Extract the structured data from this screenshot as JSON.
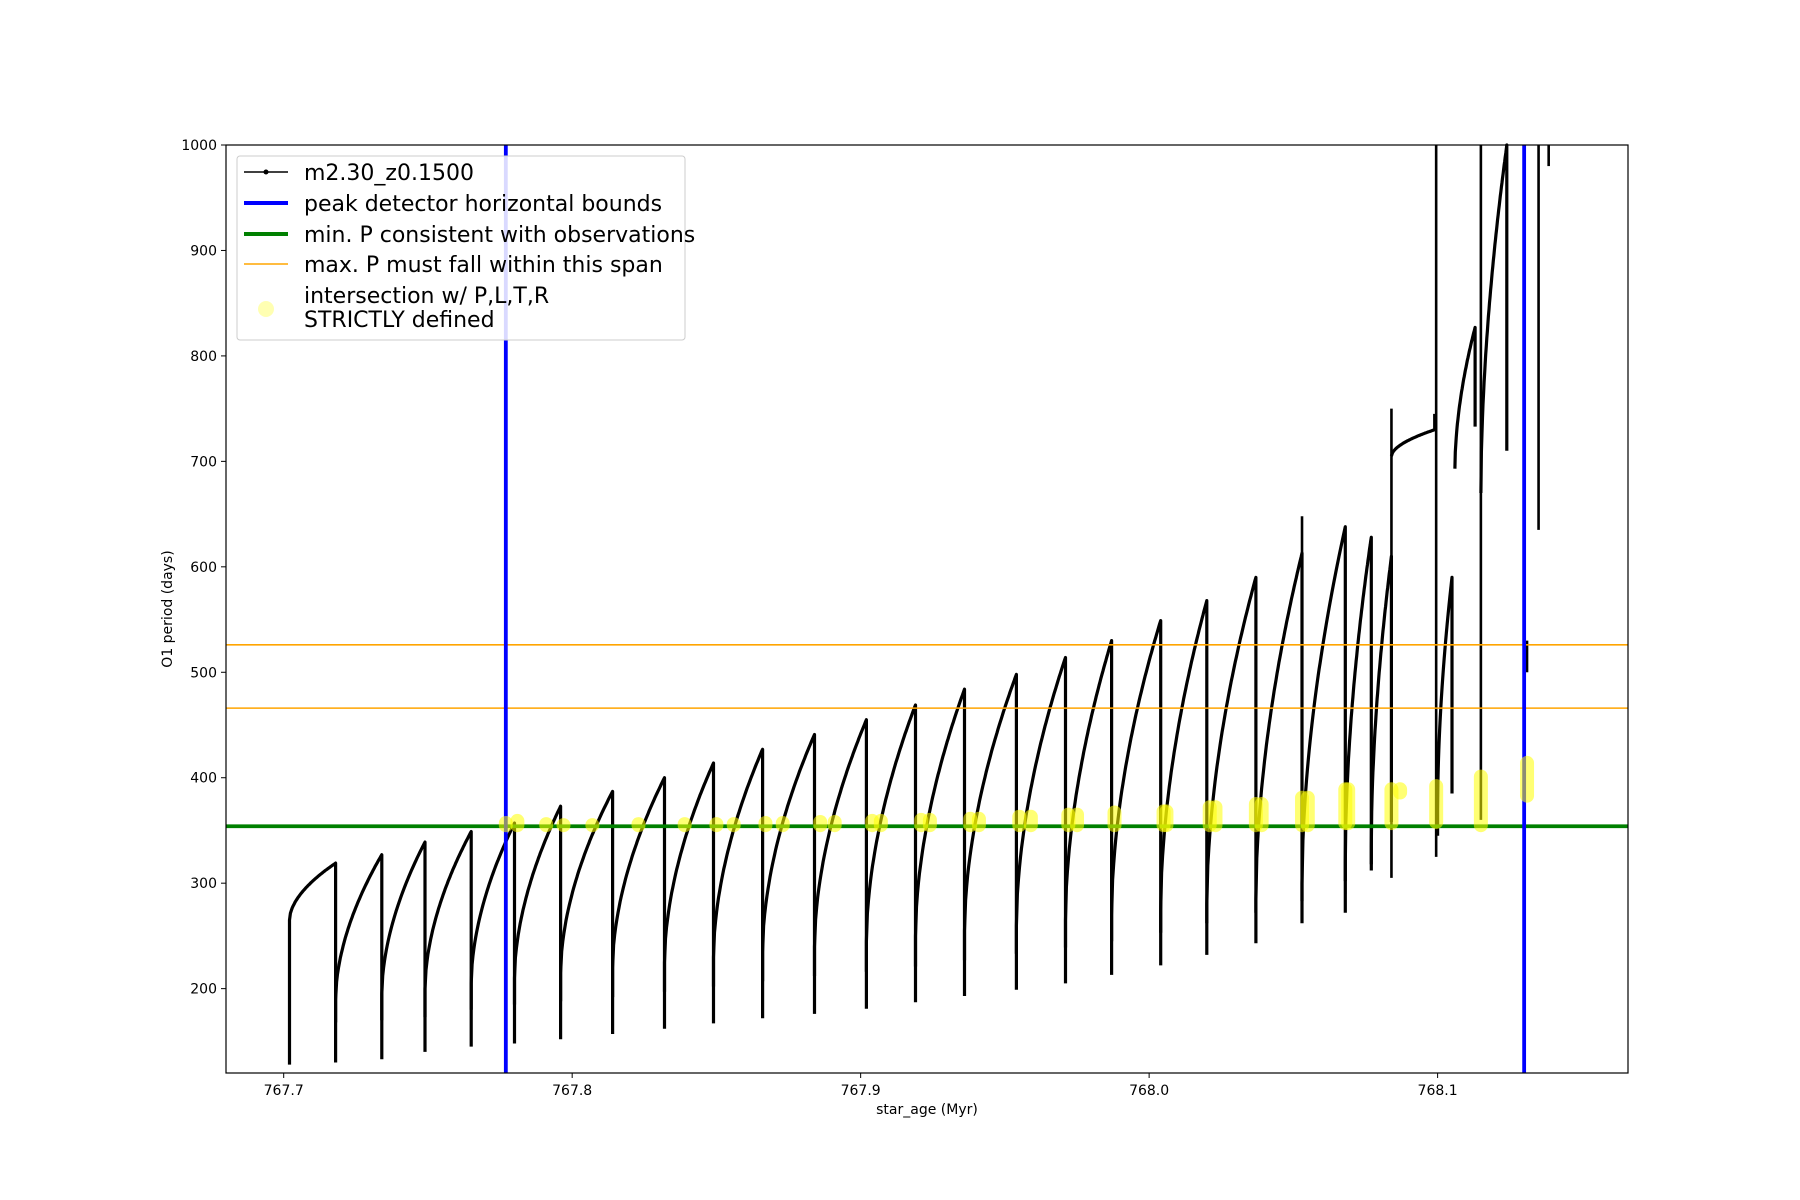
{
  "chart_data": {
    "type": "line",
    "xlabel": "star_age (Myr)",
    "ylabel": "O1 period (days)",
    "xlim": [
      767.68,
      768.166
    ],
    "ylim": [
      120,
      1000
    ],
    "x_ticks": [
      {
        "value": 767.7,
        "label": "767.7"
      },
      {
        "value": 767.8,
        "label": "767.8"
      },
      {
        "value": 767.9,
        "label": "767.9"
      },
      {
        "value": 768.0,
        "label": "768.0"
      },
      {
        "value": 768.1,
        "label": "768.1"
      }
    ],
    "y_ticks": [
      {
        "value": 200,
        "label": "200"
      },
      {
        "value": 300,
        "label": "300"
      },
      {
        "value": 400,
        "label": "400"
      },
      {
        "value": 500,
        "label": "500"
      },
      {
        "value": 600,
        "label": "600"
      },
      {
        "value": 700,
        "label": "700"
      },
      {
        "value": 800,
        "label": "800"
      },
      {
        "value": 900,
        "label": "900"
      },
      {
        "value": 1000,
        "label": "1000"
      }
    ],
    "legend_position": "top-left",
    "legend": [
      {
        "label": "m2.30_z0.1500",
        "style": "black-line-marker"
      },
      {
        "label": "peak detector horizontal bounds",
        "style": "blue-line"
      },
      {
        "label": "min. P consistent with observations",
        "style": "green-line"
      },
      {
        "label": "max. P must fall within this span",
        "style": "orange-line"
      },
      {
        "label": "intersection w/ P,L,T,R\nSTRICTLY defined",
        "style": "yellow-dot"
      }
    ],
    "colors": {
      "series": "#000000",
      "peak_bounds": "#0000ff",
      "min_p": "#008000",
      "max_p": "#ffa500",
      "intersection": "#ffff00"
    },
    "vertical_lines": [
      767.777,
      768.13
    ],
    "min_p_line": 354,
    "max_p_span": [
      466,
      526
    ],
    "cycles": [
      {
        "start": 767.702,
        "end": 767.718,
        "min": 128,
        "start_val": 265,
        "peak": 319
      },
      {
        "start": 767.718,
        "end": 767.734,
        "min": 130,
        "start_val": 190,
        "peak": 327
      },
      {
        "start": 767.734,
        "end": 767.749,
        "min": 133,
        "start_val": 195,
        "peak": 339
      },
      {
        "start": 767.749,
        "end": 767.765,
        "min": 140,
        "start_val": 200,
        "peak": 349
      },
      {
        "start": 767.765,
        "end": 767.78,
        "min": 145,
        "start_val": 205,
        "peak": 357
      },
      {
        "start": 767.78,
        "end": 767.796,
        "min": 148,
        "start_val": 210,
        "peak": 373
      },
      {
        "start": 767.796,
        "end": 767.814,
        "min": 152,
        "start_val": 215,
        "peak": 387
      },
      {
        "start": 767.814,
        "end": 767.832,
        "min": 157,
        "start_val": 220,
        "peak": 400
      },
      {
        "start": 767.832,
        "end": 767.849,
        "min": 162,
        "start_val": 225,
        "peak": 414
      },
      {
        "start": 767.849,
        "end": 767.866,
        "min": 167,
        "start_val": 230,
        "peak": 427
      },
      {
        "start": 767.866,
        "end": 767.884,
        "min": 172,
        "start_val": 235,
        "peak": 441
      },
      {
        "start": 767.884,
        "end": 767.902,
        "min": 176,
        "start_val": 240,
        "peak": 455
      },
      {
        "start": 767.902,
        "end": 767.919,
        "min": 181,
        "start_val": 245,
        "peak": 469
      },
      {
        "start": 767.919,
        "end": 767.936,
        "min": 187,
        "start_val": 250,
        "peak": 484
      },
      {
        "start": 767.936,
        "end": 767.954,
        "min": 193,
        "start_val": 255,
        "peak": 498
      },
      {
        "start": 767.954,
        "end": 767.971,
        "min": 199,
        "start_val": 260,
        "peak": 514
      },
      {
        "start": 767.971,
        "end": 767.987,
        "min": 205,
        "start_val": 265,
        "peak": 530
      },
      {
        "start": 767.987,
        "end": 768.004,
        "min": 213,
        "start_val": 270,
        "peak": 549
      },
      {
        "start": 768.004,
        "end": 768.02,
        "min": 222,
        "start_val": 275,
        "peak": 568
      },
      {
        "start": 768.02,
        "end": 768.037,
        "min": 232,
        "start_val": 280,
        "peak": 590
      },
      {
        "start": 768.037,
        "end": 768.053,
        "min": 243,
        "start_val": 285,
        "peak": 613
      },
      {
        "start": 768.053,
        "end": 768.068,
        "min": 262,
        "start_val": 300,
        "peak": 638
      },
      {
        "start": 768.068,
        "end": 768.077,
        "min": 272,
        "start_val": 320,
        "peak": 628
      },
      {
        "start": 768.077,
        "end": 768.084,
        "min": 318,
        "start_val": 335,
        "peak": 610
      },
      {
        "start": 768.084,
        "end": 768.099,
        "min": 705,
        "start_val": 705,
        "peak": 730
      },
      {
        "start": 768.1,
        "end": 768.105,
        "min": 345,
        "start_val": 370,
        "peak": 590
      },
      {
        "start": 768.106,
        "end": 768.113,
        "min": 693,
        "start_val": 693,
        "peak": 827
      },
      {
        "start": 768.115,
        "end": 768.124,
        "min": 670,
        "start_val": 670,
        "peak": 1000
      }
    ],
    "spikes": [
      {
        "x": 768.053,
        "y1": 290,
        "y2": 648
      },
      {
        "x": 768.068,
        "y1": 290,
        "y2": 610
      },
      {
        "x": 768.084,
        "y1": 305,
        "y2": 750
      },
      {
        "x": 768.0995,
        "y1": 325,
        "y2": 845
      },
      {
        "x": 768.0995,
        "y1": 845,
        "y2": 1000
      },
      {
        "x": 768.115,
        "y1": 360,
        "y2": 1000
      },
      {
        "x": 768.131,
        "y1": 500,
        "y2": 530
      },
      {
        "x": 768.135,
        "y1": 635,
        "y2": 1000
      },
      {
        "x": 768.1385,
        "y1": 980,
        "y2": 1000
      }
    ],
    "intersections": [
      {
        "x": 767.777,
        "y1": 354,
        "y2": 358
      },
      {
        "x": 767.781,
        "y1": 354,
        "y2": 360
      },
      {
        "x": 767.791,
        "y1": 354,
        "y2": 357
      },
      {
        "x": 767.797,
        "y1": 354,
        "y2": 356
      },
      {
        "x": 767.807,
        "y1": 354,
        "y2": 356
      },
      {
        "x": 767.823,
        "y1": 354,
        "y2": 357
      },
      {
        "x": 767.839,
        "y1": 354,
        "y2": 357
      },
      {
        "x": 767.85,
        "y1": 354,
        "y2": 357
      },
      {
        "x": 767.856,
        "y1": 354,
        "y2": 357
      },
      {
        "x": 767.867,
        "y1": 354,
        "y2": 358
      },
      {
        "x": 767.873,
        "y1": 354,
        "y2": 358
      },
      {
        "x": 767.886,
        "y1": 354,
        "y2": 359
      },
      {
        "x": 767.891,
        "y1": 354,
        "y2": 359
      },
      {
        "x": 767.904,
        "y1": 354,
        "y2": 360
      },
      {
        "x": 767.907,
        "y1": 354,
        "y2": 360
      },
      {
        "x": 767.921,
        "y1": 354,
        "y2": 361
      },
      {
        "x": 767.924,
        "y1": 354,
        "y2": 361
      },
      {
        "x": 767.938,
        "y1": 354,
        "y2": 362
      },
      {
        "x": 767.941,
        "y1": 354,
        "y2": 362
      },
      {
        "x": 767.955,
        "y1": 354,
        "y2": 364
      },
      {
        "x": 767.959,
        "y1": 354,
        "y2": 364
      },
      {
        "x": 767.972,
        "y1": 354,
        "y2": 366
      },
      {
        "x": 767.975,
        "y1": 354,
        "y2": 366
      },
      {
        "x": 767.988,
        "y1": 354,
        "y2": 368
      },
      {
        "x": 768.005,
        "y1": 354,
        "y2": 369
      },
      {
        "x": 768.006,
        "y1": 354,
        "y2": 369
      },
      {
        "x": 768.021,
        "y1": 354,
        "y2": 373
      },
      {
        "x": 768.023,
        "y1": 354,
        "y2": 373
      },
      {
        "x": 768.037,
        "y1": 354,
        "y2": 376
      },
      {
        "x": 768.039,
        "y1": 354,
        "y2": 376
      },
      {
        "x": 768.053,
        "y1": 354,
        "y2": 382
      },
      {
        "x": 768.055,
        "y1": 354,
        "y2": 382
      },
      {
        "x": 768.068,
        "y1": 356,
        "y2": 390
      },
      {
        "x": 768.069,
        "y1": 356,
        "y2": 390
      },
      {
        "x": 768.084,
        "y1": 356,
        "y2": 390
      },
      {
        "x": 768.087,
        "y1": 385,
        "y2": 390
      },
      {
        "x": 768.0995,
        "y1": 357,
        "y2": 393
      },
      {
        "x": 768.115,
        "y1": 354,
        "y2": 402
      },
      {
        "x": 768.131,
        "y1": 382,
        "y2": 415
      }
    ]
  }
}
